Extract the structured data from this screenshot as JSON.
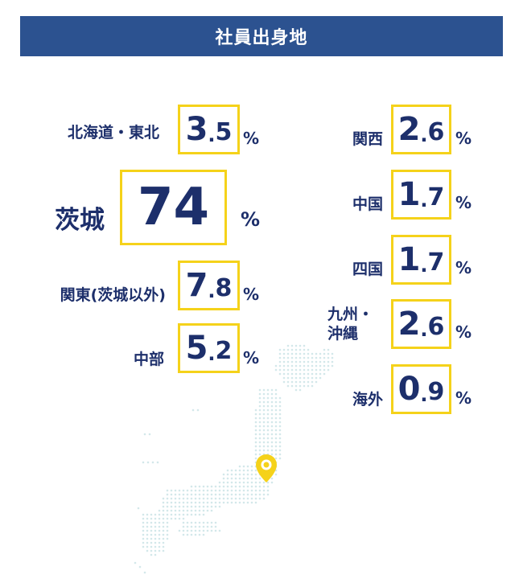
{
  "title": "社員出身地",
  "colors": {
    "header_bg": "#2c5290",
    "text": "#1d2f6b",
    "box_border": "#f5d21a",
    "pin": "#f5d21a",
    "map_dots": "#cfe6e6"
  },
  "icons": {
    "pin": "map-pin-icon"
  },
  "regions": {
    "hokkaido_tohoku": {
      "label": "北海道・東北",
      "int": "3",
      "dot": ".",
      "dec": "5",
      "unit": "%"
    },
    "ibaraki": {
      "label": "茨城",
      "int": "74",
      "unit": "%"
    },
    "kanto": {
      "label": "関東(茨城以外)",
      "int": "7",
      "dot": ".",
      "dec": "8",
      "unit": "%"
    },
    "chubu": {
      "label": "中部",
      "int": "5",
      "dot": ".",
      "dec": "2",
      "unit": "%"
    },
    "kansai": {
      "label": "関西",
      "int": "2",
      "dot": ".",
      "dec": "6",
      "unit": "%"
    },
    "chugoku": {
      "label": "中国",
      "int": "1",
      "dot": ".",
      "dec": "7",
      "unit": "%"
    },
    "shikoku": {
      "label": "四国",
      "int": "1",
      "dot": ".",
      "dec": "7",
      "unit": "%"
    },
    "kyushu_okinawa": {
      "label_line1": "九州・",
      "label_line2": "沖縄",
      "int": "2",
      "dot": ".",
      "dec": "6",
      "unit": "%"
    },
    "overseas": {
      "label": "海外",
      "int": "0",
      "dot": ".",
      "dec": "9",
      "unit": "%"
    }
  }
}
